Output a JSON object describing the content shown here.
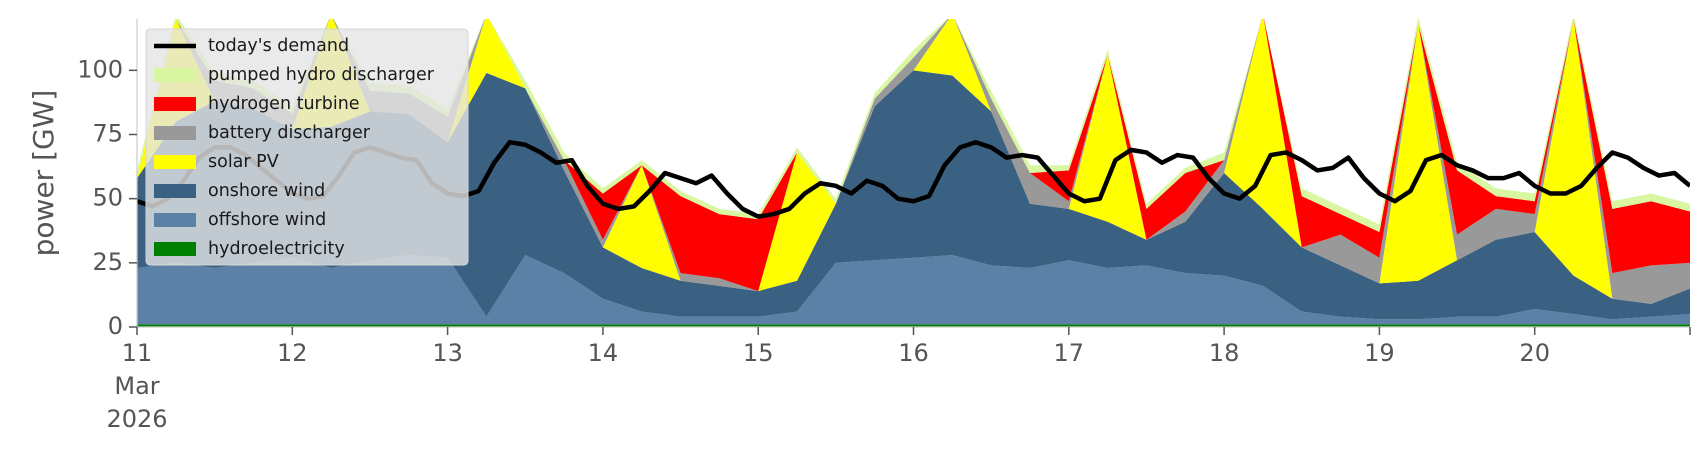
{
  "chart_data": {
    "type": "area",
    "ylabel": "power [GW]",
    "ylim": [
      0,
      120
    ],
    "y_ticks": [
      "0",
      "25",
      "50",
      "75",
      "100"
    ],
    "y_tick_values": [
      0,
      25,
      50,
      75,
      100
    ],
    "xlim": [
      0,
      10
    ],
    "x_ticks": [
      {
        "pos": 0,
        "label": "11",
        "sub": [
          "Mar",
          "2026"
        ]
      },
      {
        "pos": 1,
        "label": "12"
      },
      {
        "pos": 2,
        "label": "13"
      },
      {
        "pos": 3,
        "label": "14"
      },
      {
        "pos": 4,
        "label": "15"
      },
      {
        "pos": 5,
        "label": "16"
      },
      {
        "pos": 6,
        "label": "17"
      },
      {
        "pos": 7,
        "label": "18"
      },
      {
        "pos": 8,
        "label": "19"
      },
      {
        "pos": 9,
        "label": "20"
      }
    ],
    "grid": false,
    "legend_position": "top-left",
    "x": [
      0,
      0.25,
      0.5,
      0.75,
      1,
      1.25,
      1.5,
      1.75,
      2,
      2.25,
      2.5,
      2.75,
      3,
      3.25,
      3.5,
      3.75,
      4,
      4.25,
      4.5,
      4.75,
      5,
      5.25,
      5.5,
      5.75,
      6,
      6.25,
      6.5,
      6.75,
      7,
      7.25,
      7.5,
      7.75,
      8,
      8.25,
      8.5,
      8.75,
      9,
      9.25,
      9.5,
      9.75,
      10
    ],
    "series": [
      {
        "name": "hydroelectricity",
        "color": "#008000",
        "values": [
          1,
          1,
          1,
          1,
          1,
          1,
          1,
          1,
          1,
          1,
          1,
          1,
          1,
          1,
          1,
          1,
          1,
          1,
          1,
          1,
          1,
          1,
          1,
          1,
          1,
          1,
          1,
          1,
          1,
          1,
          1,
          1,
          1,
          1,
          1,
          1,
          1,
          1,
          1,
          1,
          1
        ]
      },
      {
        "name": "offshore wind",
        "color": "#5b82a6",
        "values": [
          22,
          24,
          22,
          24,
          26,
          22,
          25,
          27,
          26,
          3,
          27,
          20,
          10,
          5,
          3,
          3,
          3,
          5,
          24,
          25,
          26,
          27,
          23,
          22,
          25,
          22,
          23,
          20,
          19,
          15,
          5,
          3,
          2,
          2,
          3,
          3,
          6,
          4,
          2,
          3,
          4
        ]
      },
      {
        "name": "onshore wind",
        "color": "#3b6182",
        "values": [
          35,
          55,
          65,
          60,
          50,
          55,
          58,
          55,
          45,
          95,
          65,
          40,
          20,
          17,
          14,
          12,
          10,
          12,
          23,
          60,
          73,
          70,
          60,
          25,
          20,
          18,
          10,
          20,
          40,
          30,
          25,
          20,
          14,
          15,
          22,
          30,
          30,
          15,
          8,
          5,
          10
        ]
      },
      {
        "name": "solar PV",
        "color": "#ffff00",
        "values": [
          0,
          40,
          0,
          0,
          0,
          45,
          0,
          0,
          0,
          70,
          0,
          0,
          0,
          40,
          0,
          0,
          0,
          50,
          0,
          0,
          0,
          85,
          0,
          0,
          0,
          65,
          0,
          0,
          0,
          90,
          0,
          0,
          0,
          100,
          0,
          0,
          0,
          100,
          0,
          0,
          0
        ]
      },
      {
        "name": "battery discharger",
        "color": "#999999",
        "values": [
          0,
          0,
          8,
          8,
          6,
          8,
          8,
          8,
          10,
          0,
          0,
          4,
          3,
          0,
          3,
          3,
          0,
          0,
          0,
          3,
          5,
          0,
          5,
          12,
          3,
          0,
          0,
          4,
          5,
          0,
          0,
          12,
          10,
          0,
          10,
          12,
          7,
          0,
          10,
          15,
          10
        ]
      },
      {
        "name": "hydrogen turbine",
        "color": "#ff0000",
        "values": [
          0,
          0,
          0,
          0,
          0,
          0,
          0,
          0,
          0,
          0,
          0,
          0,
          18,
          0,
          30,
          25,
          28,
          0,
          0,
          0,
          0,
          0,
          0,
          0,
          12,
          0,
          12,
          15,
          0,
          0,
          20,
          8,
          10,
          0,
          25,
          5,
          5,
          0,
          25,
          25,
          20
        ]
      },
      {
        "name": "pumped hydro discharger",
        "color": "#d9f7a1",
        "values": [
          3,
          3,
          3,
          3,
          3,
          3,
          3,
          3,
          3,
          3,
          3,
          3,
          2,
          2,
          2,
          2,
          2,
          2,
          2,
          2,
          3,
          3,
          3,
          3,
          2,
          2,
          2,
          2,
          3,
          3,
          3,
          3,
          3,
          3,
          3,
          3,
          3,
          3,
          3,
          3,
          3
        ]
      }
    ],
    "demand": {
      "name": "today's demand",
      "color": "#000000",
      "x": [
        0,
        0.05,
        0.1,
        0.2,
        0.3,
        0.4,
        0.5,
        0.6,
        0.7,
        0.8,
        0.9,
        1.0,
        1.1,
        1.2,
        1.3,
        1.4,
        1.5,
        1.6,
        1.7,
        1.8,
        1.9,
        2.0,
        2.1,
        2.2,
        2.3,
        2.4,
        2.5,
        2.6,
        2.7,
        2.8,
        2.9,
        3.0,
        3.1,
        3.2,
        3.3,
        3.4,
        3.5,
        3.6,
        3.7,
        3.8,
        3.9,
        4.0,
        4.1,
        4.2,
        4.3,
        4.4,
        4.5,
        4.6,
        4.7,
        4.8,
        4.9,
        5.0,
        5.1,
        5.2,
        5.3,
        5.4,
        5.5,
        5.6,
        5.7,
        5.8,
        5.9,
        6.0,
        6.1,
        6.2,
        6.3,
        6.4,
        6.5,
        6.6,
        6.7,
        6.8,
        6.9,
        7.0,
        7.1,
        7.2,
        7.3,
        7.4,
        7.5,
        7.6,
        7.7,
        7.8,
        7.9,
        8.0,
        8.1,
        8.2,
        8.3,
        8.4,
        8.5,
        8.6,
        8.7,
        8.8,
        8.9,
        9.0,
        9.1,
        9.2,
        9.3,
        9.4,
        9.5,
        9.6,
        9.7,
        9.8,
        9.9,
        10.0
      ],
      "values": [
        49,
        48,
        47,
        50,
        57,
        66,
        70,
        70,
        67,
        62,
        57,
        52,
        50,
        51,
        59,
        68,
        70,
        68,
        66,
        65,
        56,
        52,
        51,
        53,
        64,
        72,
        71,
        68,
        64,
        65,
        55,
        48,
        46,
        47,
        53,
        60,
        58,
        56,
        59,
        52,
        46,
        43,
        44,
        46,
        52,
        56,
        55,
        52,
        57,
        55,
        50,
        49,
        51,
        63,
        70,
        72,
        70,
        66,
        67,
        66,
        59,
        52,
        49,
        50,
        65,
        69,
        68,
        64,
        67,
        66,
        58,
        52,
        50,
        55,
        67,
        68,
        65,
        61,
        62,
        66,
        58,
        52,
        49,
        53,
        65,
        67,
        63,
        61,
        58,
        58,
        60,
        55,
        52,
        52,
        55,
        62,
        68,
        66,
        62,
        59,
        60,
        55
      ]
    }
  }
}
